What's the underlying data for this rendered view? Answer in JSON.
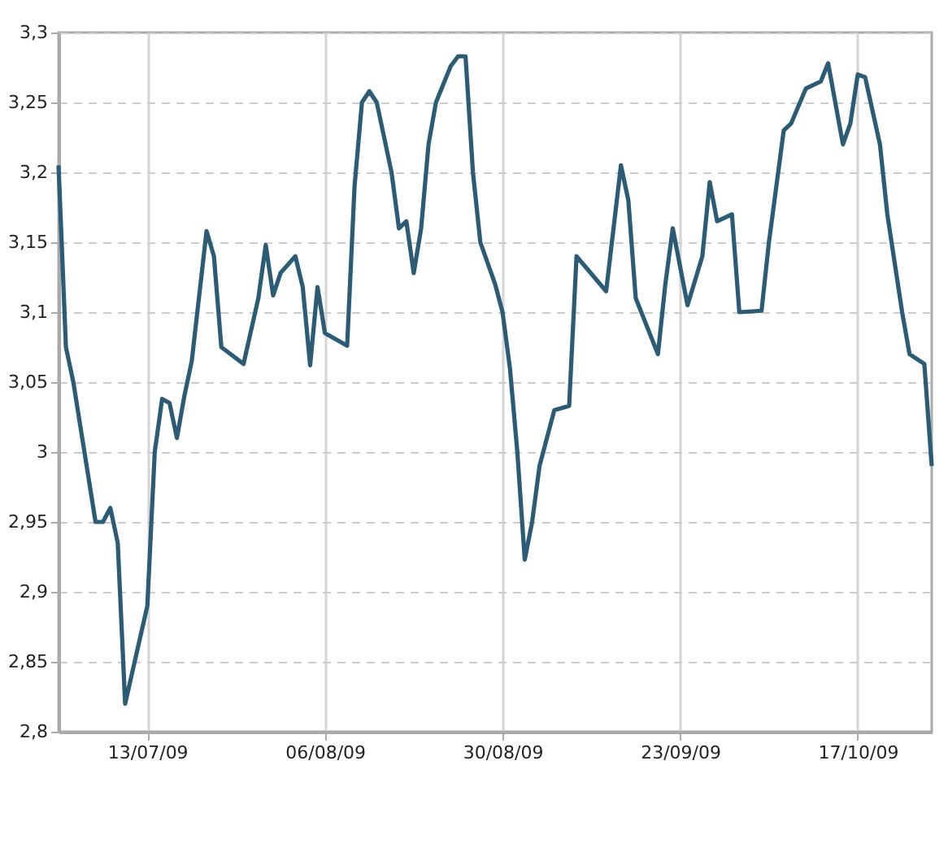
{
  "chart_data": {
    "type": "line",
    "x": [
      "2009-07-01",
      "2009-07-02",
      "2009-07-03",
      "2009-07-06",
      "2009-07-07",
      "2009-07-08",
      "2009-07-09",
      "2009-07-10",
      "2009-07-13",
      "2009-07-14",
      "2009-07-15",
      "2009-07-16",
      "2009-07-17",
      "2009-07-18",
      "2009-07-19",
      "2009-07-21",
      "2009-07-22",
      "2009-07-23",
      "2009-07-26",
      "2009-07-28",
      "2009-07-29",
      "2009-07-30",
      "2009-07-31",
      "2009-08-02",
      "2009-08-03",
      "2009-08-04",
      "2009-08-05",
      "2009-08-06",
      "2009-08-09",
      "2009-08-10",
      "2009-08-11",
      "2009-08-12",
      "2009-08-13",
      "2009-08-15",
      "2009-08-16",
      "2009-08-17",
      "2009-08-18",
      "2009-08-19",
      "2009-08-20",
      "2009-08-21",
      "2009-08-23",
      "2009-08-24",
      "2009-08-25",
      "2009-08-26",
      "2009-08-27",
      "2009-08-29",
      "2009-08-30",
      "2009-08-31",
      "2009-09-01",
      "2009-09-02",
      "2009-09-03",
      "2009-09-04",
      "2009-09-06",
      "2009-09-08",
      "2009-09-09",
      "2009-09-13",
      "2009-09-14",
      "2009-09-15",
      "2009-09-16",
      "2009-09-17",
      "2009-09-20",
      "2009-09-21",
      "2009-09-22",
      "2009-09-24",
      "2009-09-26",
      "2009-09-27",
      "2009-09-28",
      "2009-09-30",
      "2009-10-01",
      "2009-10-04",
      "2009-10-05",
      "2009-10-07",
      "2009-10-08",
      "2009-10-10",
      "2009-10-12",
      "2009-10-13",
      "2009-10-15",
      "2009-10-16",
      "2009-10-17",
      "2009-10-18",
      "2009-10-20",
      "2009-10-21",
      "2009-10-23",
      "2009-10-24",
      "2009-10-26",
      "2009-10-27"
    ],
    "series": [
      {
        "color": "#2b5b75",
        "values": [
          3.205,
          3.075,
          3.05,
          2.95,
          2.95,
          2.96,
          2.935,
          2.82,
          2.89,
          3.0,
          3.038,
          3.035,
          3.01,
          3.04,
          3.065,
          3.158,
          3.14,
          3.075,
          3.063,
          3.11,
          3.148,
          3.112,
          3.128,
          3.14,
          3.118,
          3.062,
          3.118,
          3.085,
          3.076,
          3.19,
          3.25,
          3.258,
          3.25,
          3.2,
          3.16,
          3.165,
          3.128,
          3.16,
          3.22,
          3.25,
          3.276,
          3.283,
          3.283,
          3.2,
          3.15,
          3.12,
          3.1,
          3.06,
          3.0,
          2.923,
          2.95,
          2.99,
          3.03,
          3.033,
          3.14,
          3.115,
          3.16,
          3.205,
          3.18,
          3.11,
          3.07,
          3.12,
          3.16,
          3.105,
          3.14,
          3.193,
          3.165,
          3.17,
          3.1,
          3.101,
          3.15,
          3.23,
          3.235,
          3.26,
          3.265,
          3.278,
          3.22,
          3.235,
          3.27,
          3.268,
          3.22,
          3.17,
          3.1,
          3.07,
          3.063,
          2.99
        ]
      }
    ],
    "xlim": [
      "2009-07-01",
      "2009-10-27"
    ],
    "xticks": [
      {
        "value": "2009-07-13",
        "label": "13/07/09"
      },
      {
        "value": "2009-08-06",
        "label": "06/08/09"
      },
      {
        "value": "2009-08-30",
        "label": "30/08/09"
      },
      {
        "value": "2009-09-23",
        "label": "23/09/09"
      },
      {
        "value": "2009-10-17",
        "label": "17/10/09"
      }
    ],
    "ylim": [
      2.8,
      3.3
    ],
    "yticks": [
      {
        "value": 2.8,
        "label": "2,8"
      },
      {
        "value": 2.85,
        "label": "2,85"
      },
      {
        "value": 2.9,
        "label": "2,9"
      },
      {
        "value": 2.95,
        "label": "2,95"
      },
      {
        "value": 3,
        "label": "3"
      },
      {
        "value": 3.05,
        "label": "3,05"
      },
      {
        "value": 3.1,
        "label": "3,1"
      },
      {
        "value": 3.15,
        "label": "3,15"
      },
      {
        "value": 3.2,
        "label": "3,2"
      },
      {
        "value": 3.25,
        "label": "3,25"
      },
      {
        "value": 3.3,
        "label": "3,3"
      }
    ],
    "grid": true,
    "marker": "none",
    "line_style": "solid"
  }
}
